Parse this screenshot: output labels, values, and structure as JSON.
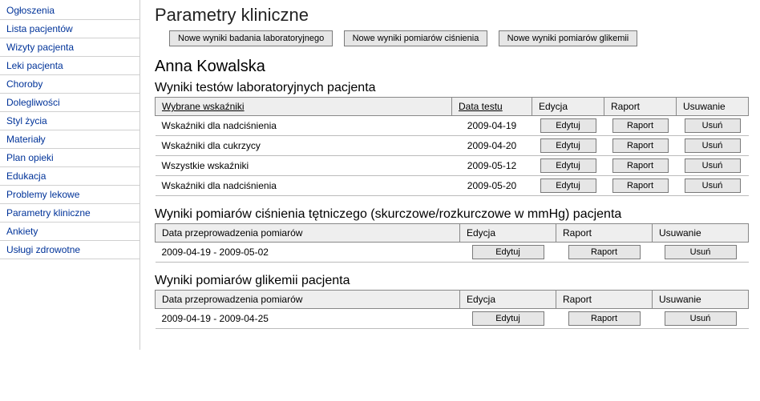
{
  "sidebar": {
    "items": [
      "Ogłoszenia",
      "Lista pacjentów",
      "Wizyty pacjenta",
      "Leki pacjenta",
      "Choroby",
      "Dolegliwości",
      "Styl życia",
      "Materiały",
      "Plan opieki",
      "Edukacja",
      "Problemy lekowe",
      "Parametry kliniczne",
      "Ankiety",
      "Usługi zdrowotne"
    ]
  },
  "page": {
    "title": "Parametry kliniczne",
    "patientName": "Anna Kowalska"
  },
  "toolbar": {
    "newLab": "Nowe wyniki badania laboratoryjnego",
    "newBP": "Nowe wyniki pomiarów ciśnienia",
    "newGlyc": "Nowe wyniki pomiarów glikemii"
  },
  "labels": {
    "edit": "Edytuj",
    "report": "Raport",
    "delete": "Usuń"
  },
  "labSection": {
    "title": "Wyniki testów laboratoryjnych pacjenta",
    "columns": {
      "indicators": "Wybrane wskaźniki",
      "date": "Data testu",
      "edit": "Edycja",
      "report": "Raport",
      "delete": "Usuwanie"
    },
    "rows": [
      {
        "name": "Wskaźniki dla nadciśnienia",
        "date": "2009-04-19"
      },
      {
        "name": "Wskaźniki dla cukrzycy",
        "date": "2009-04-20"
      },
      {
        "name": "Wszystkie wskaźniki",
        "date": "2009-05-12"
      },
      {
        "name": "Wskaźniki dla nadciśnienia",
        "date": "2009-05-20"
      }
    ]
  },
  "bpSection": {
    "title": "Wyniki pomiarów ciśnienia tętniczego (skurczowe/rozkurczowe w mmHg) pacjenta",
    "columns": {
      "date": "Data przeprowadzenia pomiarów",
      "edit": "Edycja",
      "report": "Raport",
      "delete": "Usuwanie"
    },
    "rows": [
      {
        "range": "2009-04-19 - 2009-05-02"
      }
    ]
  },
  "glycSection": {
    "title": "Wyniki pomiarów glikemii pacjenta",
    "columns": {
      "date": "Data przeprowadzenia pomiarów",
      "edit": "Edycja",
      "report": "Raport",
      "delete": "Usuwanie"
    },
    "rows": [
      {
        "range": "2009-04-19 - 2009-04-25"
      }
    ]
  }
}
